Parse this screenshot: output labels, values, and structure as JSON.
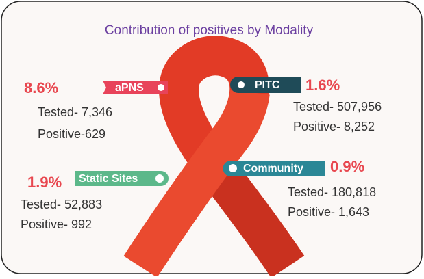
{
  "title": "Contribution of positives by Modality",
  "items": [
    {
      "label": "aPNS",
      "percent": "8.6%",
      "tested": "Tested- 7,346",
      "positive": "Positive-629"
    },
    {
      "label": "PITC",
      "percent": "1.6%",
      "tested": "Tested- 507,956",
      "positive": "Positive- 8,252"
    },
    {
      "label": "Static Sites",
      "percent": "1.9%",
      "tested": "Tested- 52,883",
      "positive": "Positive- 992"
    },
    {
      "label": "Community",
      "percent": "0.9%",
      "tested": "Tested- 180,818",
      "positive": "Positive- 1,643"
    }
  ]
}
